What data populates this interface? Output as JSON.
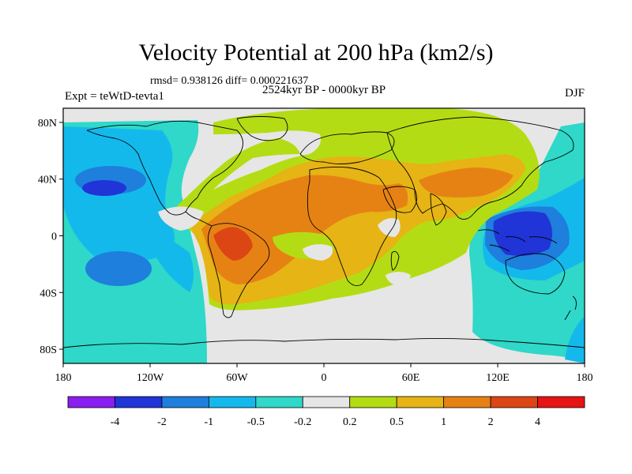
{
  "title": "Velocity Potential at 200 hPa (km2/s)",
  "stats": "rmsd= 0.938126 diff= 0.000221637",
  "subtitle": "2524kyr BP - 0000kyr BP",
  "experiment": "Expt = teWtD-tevta1",
  "season": "DJF",
  "map": {
    "projection": "cylindrical equidistant",
    "lon_range": [
      -180,
      180
    ],
    "lat_range": [
      -90,
      90
    ],
    "x_ticks": [
      {
        "value": -180,
        "label": "180"
      },
      {
        "value": -120,
        "label": "120W"
      },
      {
        "value": -60,
        "label": "60W"
      },
      {
        "value": 0,
        "label": "0"
      },
      {
        "value": 60,
        "label": "60E"
      },
      {
        "value": 120,
        "label": "120E"
      },
      {
        "value": 180,
        "label": "180"
      }
    ],
    "y_ticks": [
      {
        "value": 80,
        "label": "80N"
      },
      {
        "value": 40,
        "label": "40N"
      },
      {
        "value": 0,
        "label": "0"
      },
      {
        "value": -40,
        "label": "40S"
      },
      {
        "value": -80,
        "label": "80S"
      }
    ]
  },
  "colorbar": {
    "levels": [
      "-4",
      "-2",
      "-1",
      "-0.5",
      "-0.2",
      "0.2",
      "0.5",
      "1",
      "2",
      "4"
    ],
    "colors": [
      "#8a1ef0",
      "#2034d8",
      "#1e7fdc",
      "#14b9ec",
      "#2fd8c8",
      "#e6e6e6",
      "#b4dc14",
      "#e6b414",
      "#e68214",
      "#dc4614",
      "#e61414"
    ]
  }
}
